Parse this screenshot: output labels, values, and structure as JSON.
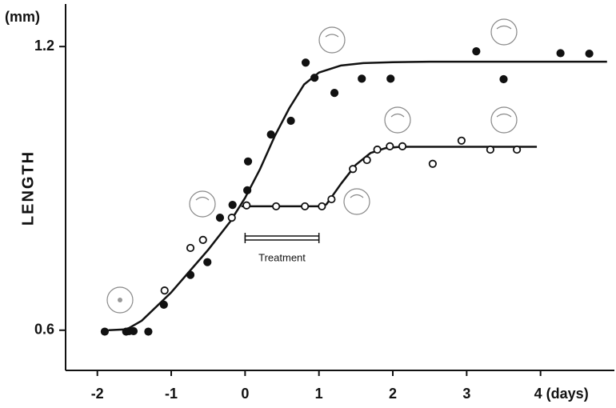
{
  "chart_data": {
    "type": "scatter",
    "y_unit": "(mm)",
    "y_label": "LENGTH",
    "annotation": "Treatment",
    "treatment_interval": [
      0,
      1
    ],
    "xlim": [
      -2.43,
      5.0
    ],
    "ylim": [
      0.515,
      1.29
    ],
    "xticks": [
      -2,
      -1,
      0,
      1,
      2,
      3,
      {
        "value": 4,
        "label": "4 (days)"
      }
    ],
    "yticks": [
      0.6,
      1.2
    ],
    "series": [
      {
        "color": "#111111",
        "marker": "filled",
        "x": [
          -1.9,
          -1.61,
          -1.57,
          -1.51,
          -1.31,
          -1.1,
          -0.74,
          -0.51,
          -0.34,
          -0.17,
          0.03,
          0.04,
          0.35,
          0.62,
          0.82,
          0.94,
          1.21,
          1.58,
          1.97,
          3.13,
          3.5,
          4.27,
          4.66
        ],
        "values": [
          0.597,
          0.597,
          0.598,
          0.598,
          0.597,
          0.654,
          0.717,
          0.744,
          0.838,
          0.865,
          0.896,
          0.957,
          1.014,
          1.043,
          1.166,
          1.134,
          1.102,
          1.132,
          1.132,
          1.19,
          1.131,
          1.186,
          1.185
        ]
      },
      {
        "color": "#111111",
        "marker": "open",
        "x": [
          -1.09,
          -0.74,
          -0.57,
          -0.18,
          0.02,
          0.42,
          0.81,
          1.04,
          1.17,
          1.46,
          1.65,
          1.79,
          1.96,
          2.13,
          2.54,
          2.93,
          3.32,
          3.68
        ],
        "values": [
          0.684,
          0.774,
          0.791,
          0.838,
          0.864,
          0.862,
          0.862,
          0.862,
          0.877,
          0.941,
          0.96,
          0.982,
          0.989,
          0.989,
          0.952,
          1.001,
          0.982,
          0.982
        ]
      }
    ],
    "curves": [
      {
        "color": "#111111",
        "x": [
          -1.85,
          -1.6,
          -1.4,
          -1.0,
          -0.5,
          -0.2,
          0,
          0.2,
          0.4,
          0.6,
          0.8,
          1.0,
          1.3,
          1.6,
          2.0,
          2.5,
          3.0,
          4.0,
          4.9
        ],
        "values": [
          0.6,
          0.602,
          0.62,
          0.68,
          0.77,
          0.83,
          0.88,
          0.94,
          1.01,
          1.07,
          1.12,
          1.145,
          1.16,
          1.165,
          1.167,
          1.168,
          1.168,
          1.168,
          1.168
        ]
      },
      {
        "color": "#111111",
        "x": [
          -0.05,
          1.0,
          1.1,
          1.3,
          1.5,
          1.7,
          1.9,
          2.1,
          3.95
        ],
        "values": [
          0.862,
          0.862,
          0.866,
          0.91,
          0.95,
          0.975,
          0.985,
          0.988,
          0.988
        ]
      }
    ]
  }
}
